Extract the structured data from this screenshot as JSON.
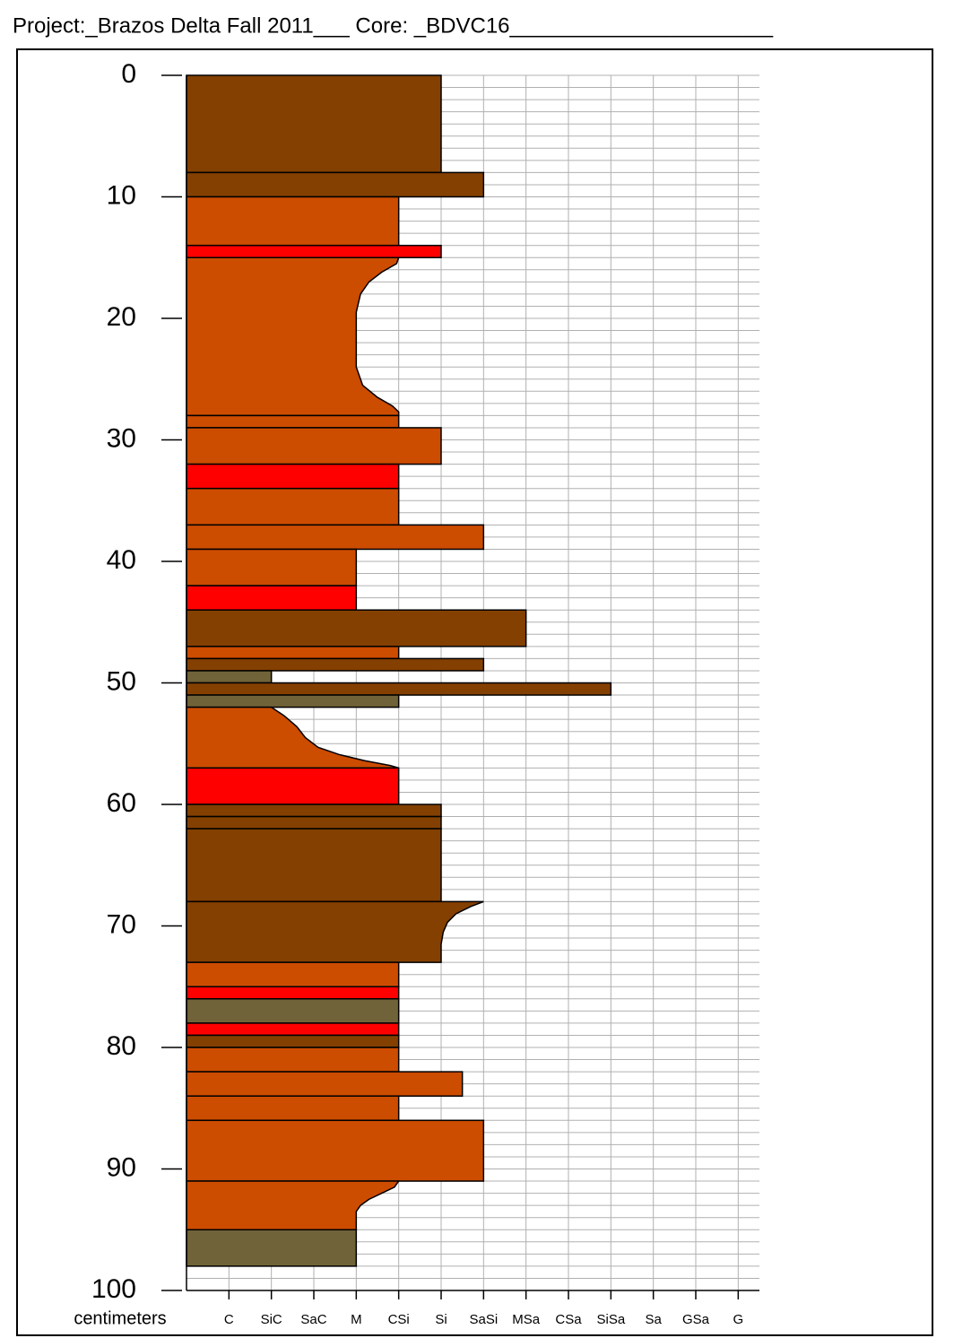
{
  "chart_data": {
    "type": "core-log",
    "title": "Project:_Brazos Delta Fall 2011___   Core: _BDVC16______________________",
    "xlabel": "centimeters",
    "ylim": [
      0,
      100
    ],
    "yticks": [
      0,
      10,
      20,
      30,
      40,
      50,
      60,
      70,
      80,
      90,
      100
    ],
    "xlim": [
      0,
      13.5
    ],
    "xticks": [
      {
        "value": 1,
        "label": "C"
      },
      {
        "value": 2,
        "label": "SiC"
      },
      {
        "value": 3,
        "label": "SaC"
      },
      {
        "value": 4,
        "label": "M"
      },
      {
        "value": 5,
        "label": "CSi"
      },
      {
        "value": 6,
        "label": "Si"
      },
      {
        "value": 7,
        "label": "SaSi"
      },
      {
        "value": 8,
        "label": "MSa"
      },
      {
        "value": 9,
        "label": "CSa"
      },
      {
        "value": 10,
        "label": "SiSa"
      },
      {
        "value": 11,
        "label": "Sa"
      },
      {
        "value": 12,
        "label": "GSa"
      },
      {
        "value": 13,
        "label": "G"
      }
    ],
    "grid": true,
    "minor_ystep": 1,
    "layers": [
      {
        "top": 0,
        "base": 8,
        "size": 6,
        "color": "#844000"
      },
      {
        "top": 8,
        "base": 10,
        "size": 7,
        "color": "#844000"
      },
      {
        "top": 10,
        "base": 14,
        "size": 5,
        "color": "#cc4c00"
      },
      {
        "top": 14,
        "base": 15,
        "size": 6,
        "color": "#ff0000"
      },
      {
        "top": 15,
        "base": 28,
        "color": "#cc4c00",
        "profile": {
          "depths": [
            15,
            15.5,
            16.2,
            17,
            18,
            19.5,
            21,
            24,
            25.5,
            26.5,
            27.2,
            27.7,
            28
          ],
          "sizes": [
            5,
            4.95,
            4.6,
            4.3,
            4.1,
            4,
            4,
            4,
            4.15,
            4.5,
            4.85,
            5,
            5
          ]
        }
      },
      {
        "top": 28,
        "base": 29,
        "size": 5,
        "color": "#cc4c00"
      },
      {
        "top": 29,
        "base": 32,
        "size": 6,
        "color": "#cc4c00"
      },
      {
        "top": 32,
        "base": 34,
        "size": 5,
        "color": "#ff0000"
      },
      {
        "top": 34,
        "base": 37,
        "size": 5,
        "color": "#cc4c00"
      },
      {
        "top": 37,
        "base": 39,
        "size": 7,
        "color": "#cc4c00"
      },
      {
        "top": 39,
        "base": 42,
        "size": 4,
        "color": "#cc4c00"
      },
      {
        "top": 42,
        "base": 44,
        "size": 4,
        "color": "#ff0000"
      },
      {
        "top": 44,
        "base": 47,
        "size": 8,
        "color": "#844000"
      },
      {
        "top": 47,
        "base": 48,
        "size": 5,
        "color": "#cc4c00"
      },
      {
        "top": 48,
        "base": 49,
        "size": 7,
        "color": "#844000"
      },
      {
        "top": 49,
        "base": 50,
        "size": 2,
        "color": "#716339"
      },
      {
        "top": 50,
        "base": 51,
        "size": 10,
        "color": "#844000"
      },
      {
        "top": 51,
        "base": 52,
        "size": 5,
        "color": "#716339"
      },
      {
        "top": 52,
        "base": 57,
        "color": "#cc4c00",
        "profile": {
          "depths": [
            52,
            52.7,
            53.6,
            54.5,
            55.3,
            55.9,
            56.4,
            56.8,
            57
          ],
          "sizes": [
            2,
            2.3,
            2.6,
            2.8,
            3.1,
            3.6,
            4.2,
            4.8,
            5
          ]
        }
      },
      {
        "top": 57,
        "base": 60,
        "size": 5,
        "color": "#ff0000"
      },
      {
        "top": 60,
        "base": 61,
        "size": 6,
        "color": "#844000"
      },
      {
        "top": 61,
        "base": 62,
        "size": 6,
        "color": "#844000"
      },
      {
        "top": 62,
        "base": 68,
        "size": 6,
        "color": "#844000"
      },
      {
        "top": 68,
        "base": 73,
        "color": "#844000",
        "profile": {
          "depths": [
            68,
            68.4,
            69,
            69.7,
            70.5,
            71.5,
            73
          ],
          "sizes": [
            7,
            6.7,
            6.35,
            6.15,
            6.05,
            6,
            6
          ]
        }
      },
      {
        "top": 73,
        "base": 75,
        "size": 5,
        "color": "#cc4c00"
      },
      {
        "top": 75,
        "base": 76,
        "size": 5,
        "color": "#ff0000"
      },
      {
        "top": 76,
        "base": 78,
        "size": 5,
        "color": "#716339"
      },
      {
        "top": 78,
        "base": 79,
        "size": 5,
        "color": "#ff0000"
      },
      {
        "top": 79,
        "base": 80,
        "size": 5,
        "color": "#844000"
      },
      {
        "top": 80,
        "base": 82,
        "size": 5,
        "color": "#cc4c00"
      },
      {
        "top": 82,
        "base": 84,
        "size": 6.5,
        "color": "#cc4c00"
      },
      {
        "top": 84,
        "base": 86,
        "size": 5,
        "color": "#cc4c00"
      },
      {
        "top": 86,
        "base": 91,
        "size": 7,
        "color": "#cc4c00"
      },
      {
        "top": 91,
        "base": 95,
        "color": "#cc4c00",
        "profile": {
          "depths": [
            91,
            91.5,
            92,
            92.5,
            93,
            93.5,
            95
          ],
          "sizes": [
            5,
            4.9,
            4.6,
            4.3,
            4.1,
            4,
            4
          ]
        }
      },
      {
        "top": 95,
        "base": 98,
        "size": 4,
        "color": "#716339"
      }
    ]
  }
}
